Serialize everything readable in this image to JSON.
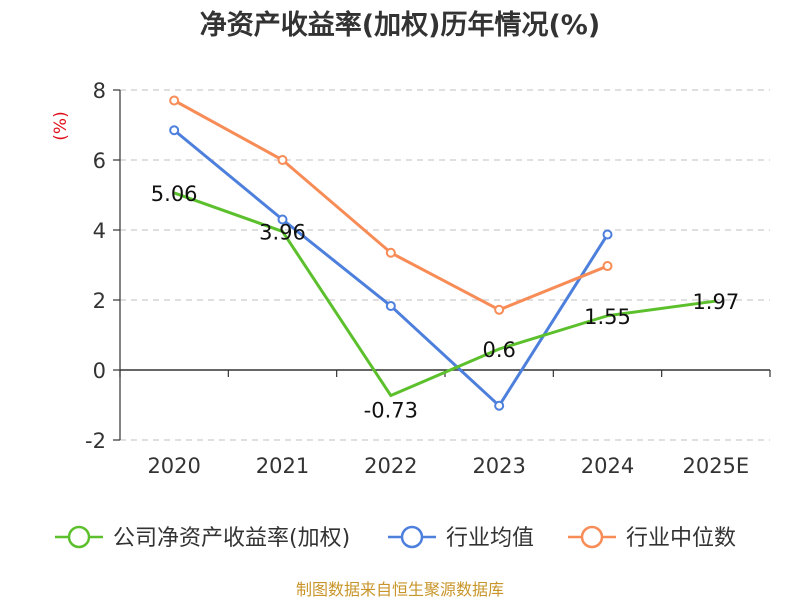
{
  "chart_data": {
    "type": "line",
    "title": "净资产收益率(加权)历年情况(%)",
    "ylabel": "(%)",
    "xlabel": "",
    "categories": [
      "2020",
      "2021",
      "2022",
      "2023",
      "2024",
      "2025E"
    ],
    "yticks": [
      "8",
      "6",
      "4",
      "2",
      "0",
      "-2"
    ],
    "ylim": [
      -2,
      8
    ],
    "grid": true,
    "legend_position": "bottom",
    "series": [
      {
        "name": "公司净资产收益率(加权)",
        "color": "#5cc02d",
        "values": [
          5.06,
          3.96,
          -0.73,
          0.6,
          1.55,
          1.97
        ],
        "labels": [
          "5.06",
          "3.96",
          "-0.73",
          "0.6",
          "1.55",
          "1.97"
        ],
        "show_markers": false
      },
      {
        "name": "行业均值",
        "color": "#4d7fdc",
        "values": [
          6.85,
          4.3,
          1.83,
          -1.02,
          3.87,
          null
        ],
        "show_markers": true
      },
      {
        "name": "行业中位数",
        "color": "#f78c57",
        "values": [
          7.7,
          6.0,
          3.35,
          1.72,
          2.97,
          null
        ],
        "show_markers": true
      }
    ]
  },
  "source": "制图数据来自恒生聚源数据库",
  "colors": {
    "title": "#333333",
    "unit": "#e0101a",
    "source": "#c8952a",
    "grid": "#cccccc",
    "axis": "#333333"
  }
}
